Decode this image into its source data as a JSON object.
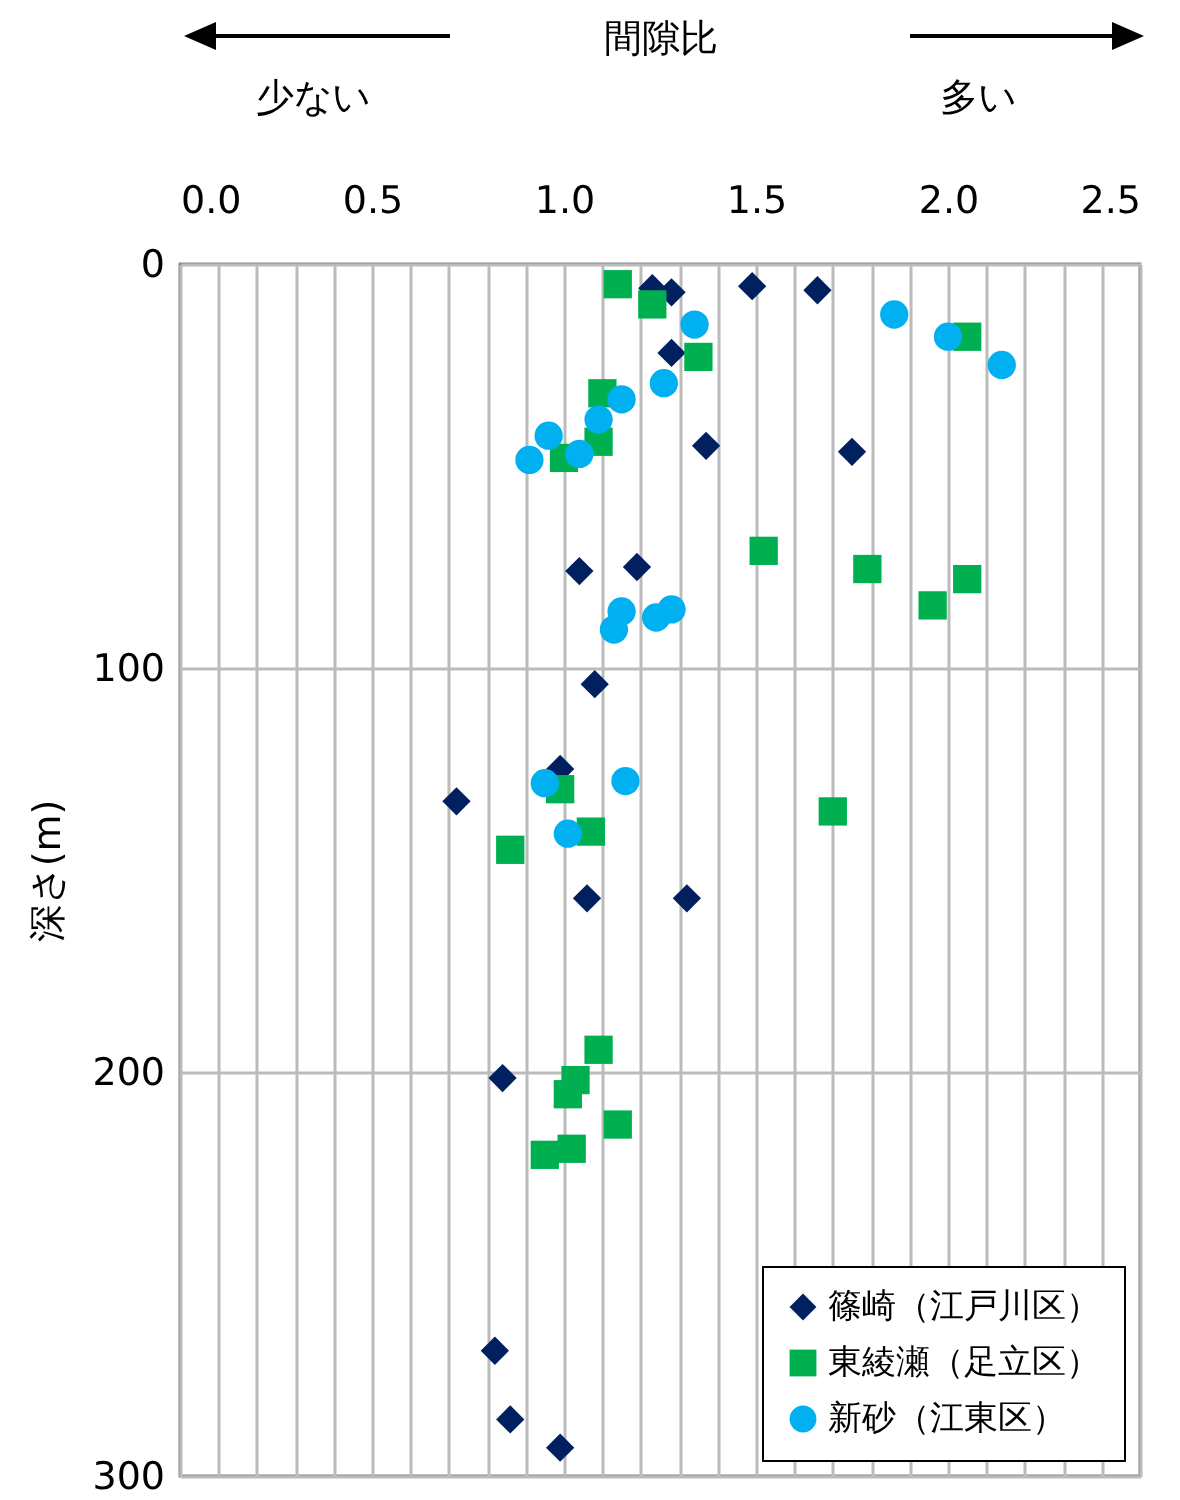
{
  "chart_data": {
    "type": "scatter",
    "xlabel": "間隙比",
    "ylabel": "深さ(m)",
    "annotations": [
      "少ない",
      "多い"
    ],
    "xlim": [
      0,
      2.5
    ],
    "xticks": [
      {
        "value": 0,
        "label": "0.0"
      },
      {
        "value": 0.1,
        "label": null
      },
      {
        "value": 0.2,
        "label": null
      },
      {
        "value": 0.3,
        "label": null
      },
      {
        "value": 0.4,
        "label": null
      },
      {
        "value": 0.5,
        "label": "0.5"
      },
      {
        "value": 0.6,
        "label": null
      },
      {
        "value": 0.7,
        "label": null
      },
      {
        "value": 0.8,
        "label": null
      },
      {
        "value": 0.9,
        "label": null
      },
      {
        "value": 1,
        "label": "1.0"
      },
      {
        "value": 1.1,
        "label": null
      },
      {
        "value": 1.2,
        "label": null
      },
      {
        "value": 1.3,
        "label": null
      },
      {
        "value": 1.4,
        "label": null
      },
      {
        "value": 1.5,
        "label": "1.5"
      },
      {
        "value": 1.6,
        "label": null
      },
      {
        "value": 1.7,
        "label": null
      },
      {
        "value": 1.8,
        "label": null
      },
      {
        "value": 1.9,
        "label": null
      },
      {
        "value": 2,
        "label": "2.0"
      },
      {
        "value": 2.1,
        "label": null
      },
      {
        "value": 2.2,
        "label": null
      },
      {
        "value": 2.3,
        "label": null
      },
      {
        "value": 2.4,
        "label": null
      },
      {
        "value": 2.5,
        "label": "2.5"
      }
    ],
    "ylim": [
      300,
      0
    ],
    "yticks": [
      0,
      100,
      200,
      300
    ],
    "grid": true,
    "legend": "bottom right",
    "series": [
      {
        "name": "篠崎（江戸川区）",
        "color": "#002060",
        "marker": "diamond",
        "x": [
          1.23,
          1.28,
          1.49,
          1.66,
          1.28,
          1.37,
          1.75,
          1.04,
          1.19,
          1.08,
          0.99,
          0.72,
          1.06,
          1.32,
          0.84,
          0.82,
          0.86,
          0.99
        ],
        "values": [
          6,
          7,
          5.5,
          6.5,
          22,
          45,
          46.5,
          76,
          75,
          104,
          125,
          133,
          157,
          157,
          201.5,
          269,
          286,
          293
        ]
      },
      {
        "name": "東綾瀬（足立区）",
        "color": "#00b050",
        "marker": "square",
        "x": [
          1.14,
          1.23,
          1.35,
          2.05,
          1.1,
          1.09,
          1.0,
          1.52,
          1.79,
          2.05,
          1.96,
          0.99,
          1.07,
          0.86,
          1.7,
          1.09,
          1.03,
          1.01,
          1.14,
          0.95,
          1.02
        ],
        "values": [
          5,
          10,
          23,
          18,
          32,
          44,
          48,
          71,
          75.5,
          78,
          84.5,
          130,
          140.5,
          145,
          135.5,
          194.5,
          202,
          205.5,
          213,
          220.5,
          219
        ]
      },
      {
        "name": "新砂（江東区）",
        "color": "#00b0f0",
        "marker": "circle",
        "x": [
          1.34,
          1.86,
          2.0,
          2.14,
          1.26,
          1.15,
          1.09,
          0.96,
          0.91,
          1.04,
          1.15,
          1.28,
          1.24,
          1.13,
          0.95,
          1.16,
          1.01
        ],
        "values": [
          15,
          12.5,
          18,
          25,
          29.5,
          33.5,
          38.5,
          42.5,
          48.5,
          47,
          86,
          85.5,
          87.5,
          90.5,
          128.5,
          128,
          141
        ]
      }
    ]
  }
}
